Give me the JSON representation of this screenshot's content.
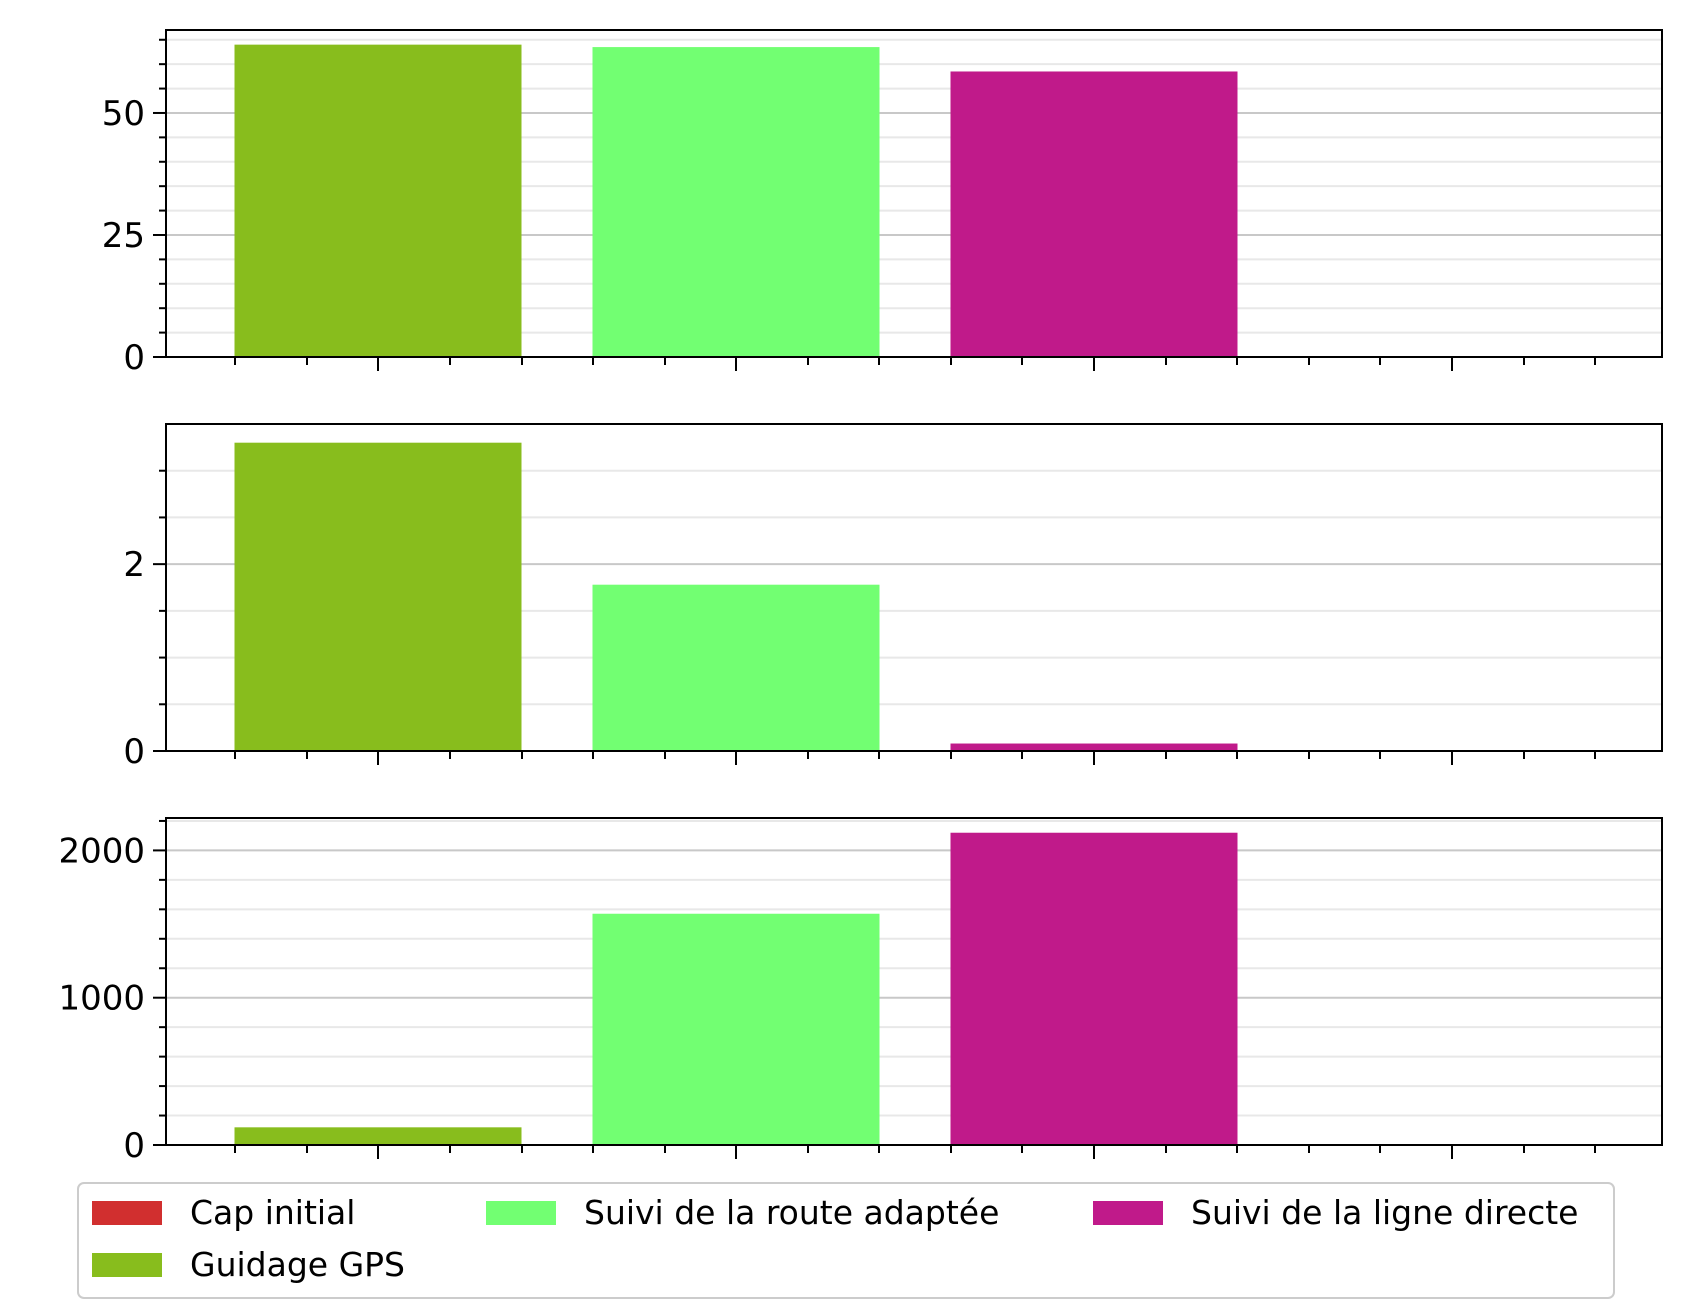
{
  "chart_data": [
    {
      "type": "bar",
      "categories": [
        "Cap initial",
        "Guidage GPS",
        "Suivi de la route adaptée",
        "Suivi de la ligne directe"
      ],
      "values": [
        0,
        64,
        63.5,
        58.5
      ],
      "ylim": [
        0,
        67
      ],
      "major_ticks": [
        0,
        25,
        50
      ],
      "minor_step": 5,
      "grid": true
    },
    {
      "type": "bar",
      "categories": [
        "Cap initial",
        "Guidage GPS",
        "Suivi de la route adaptée",
        "Suivi de la ligne directe"
      ],
      "values": [
        0,
        3.3,
        1.78,
        0.08
      ],
      "ylim": [
        0,
        3.5
      ],
      "major_ticks": [
        0,
        2
      ],
      "minor_step": 0.5,
      "grid": true
    },
    {
      "type": "bar",
      "categories": [
        "Cap initial",
        "Guidage GPS",
        "Suivi de la route adaptée",
        "Suivi de la ligne directe"
      ],
      "values": [
        0,
        120,
        1570,
        2120
      ],
      "ylim": [
        0,
        2220
      ],
      "major_ticks": [
        0,
        1000,
        2000
      ],
      "minor_step": 200,
      "grid": true
    }
  ],
  "legend": {
    "placement": "bottom",
    "entries": [
      {
        "label": "Cap initial",
        "color": "#d12f2f"
      },
      {
        "label": "Guidage GPS",
        "color": "#88bd1d"
      },
      {
        "label": "Suivi de la route adaptée",
        "color": "#72ff72"
      },
      {
        "label": "Suivi de la ligne directe",
        "color": "#c01a8a"
      }
    ]
  }
}
